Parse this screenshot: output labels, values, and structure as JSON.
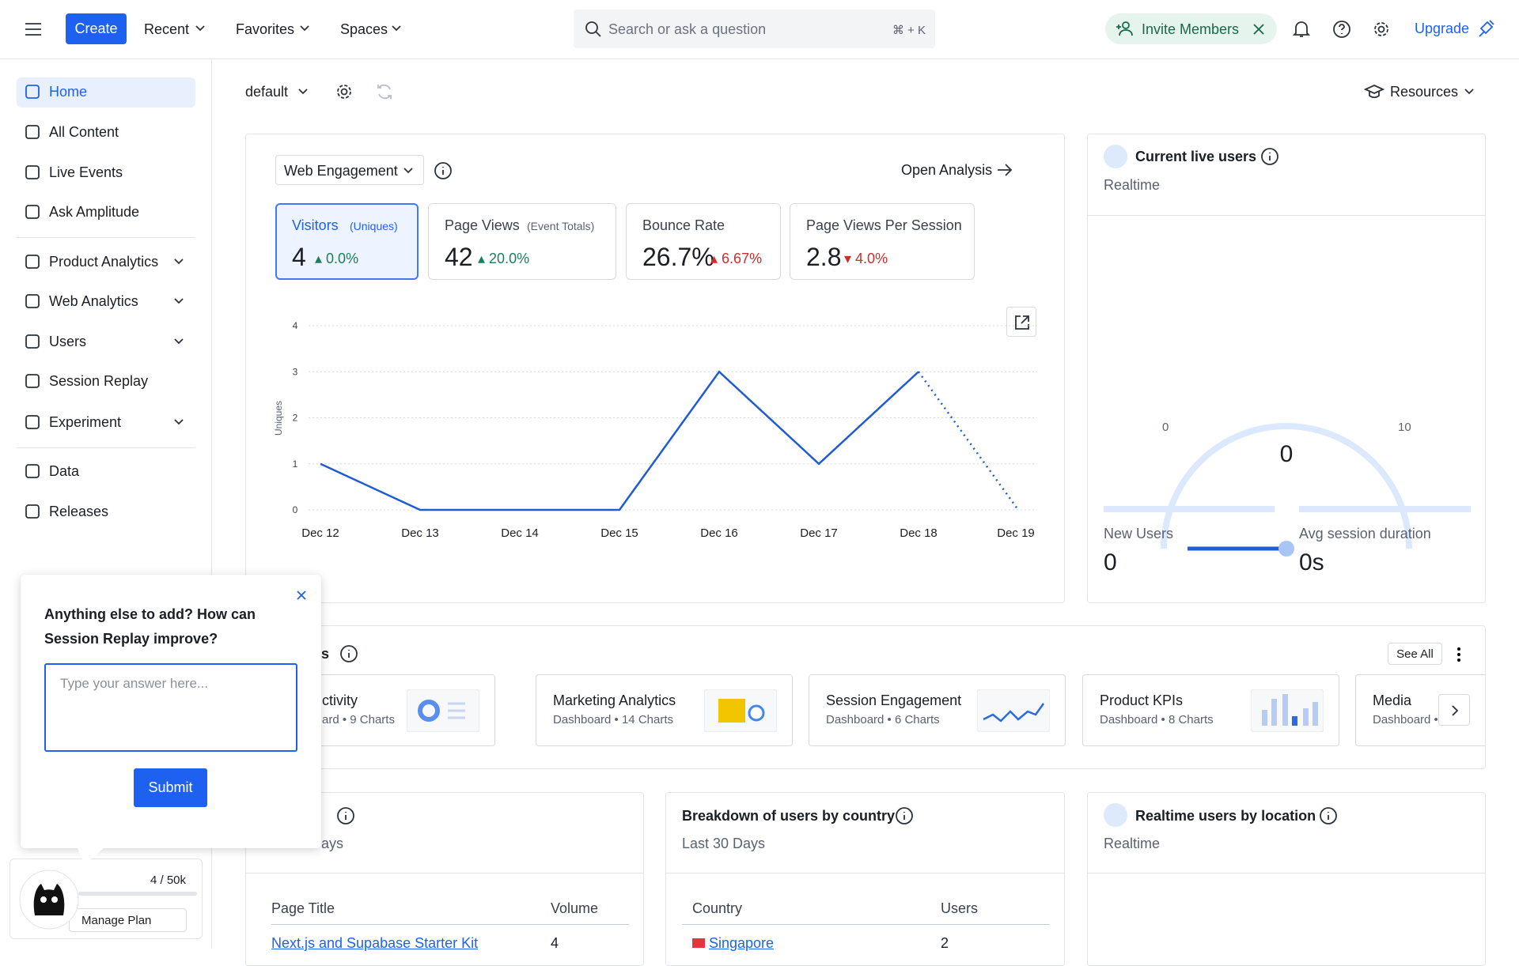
{
  "topbar": {
    "create": "Create",
    "menus": [
      "Recent",
      "Favorites",
      "Spaces"
    ],
    "search": "Search or ask a question",
    "shortcut": "⌘ + K",
    "invite": "Invite Members",
    "upgrade": "Upgrade"
  },
  "sidebar": {
    "items": [
      "Home",
      "All Content",
      "Live Events",
      "Ask Amplitude",
      "Product Analytics",
      "Web Analytics",
      "Users",
      "Session Replay",
      "Experiment",
      "Data",
      "Releases"
    ],
    "usage": "4 / 50k",
    "manage": "Manage Plan"
  },
  "toolbar": {
    "space": "default",
    "resources": "Resources"
  },
  "analysis": {
    "selector": "Web Engagement",
    "open": "Open Analysis",
    "metrics": [
      {
        "label": "Visitors",
        "sub": "(Uniques)",
        "value": "4",
        "change": "0.0%"
      },
      {
        "label": "Page Views",
        "sub": "(Event Totals)",
        "value": "42",
        "change": "20.0%"
      },
      {
        "label": "Bounce Rate",
        "value": "26.7%",
        "change": "6.67%"
      },
      {
        "label": "Page Views Per Session",
        "value": "2.8",
        "change": "4.0%"
      }
    ]
  },
  "chart_data": {
    "type": "line",
    "y_label": "Uniques",
    "categories": [
      "Dec 12",
      "Dec 13",
      "Dec 14",
      "Dec 15",
      "Dec 16",
      "Dec 17",
      "Dec 18",
      "Dec 19"
    ],
    "values": [
      1,
      0,
      0,
      0,
      3,
      1,
      3,
      0
    ],
    "color": "#1f5bd6",
    "ylim": [
      0,
      4
    ],
    "yticks": [
      0,
      1,
      2,
      3,
      4
    ],
    "grid": true
  },
  "live": {
    "title": "Current live users",
    "subtitle": "Realtime",
    "gauge_min": "0",
    "gauge_max": "10",
    "gauge_value": "0",
    "stats": [
      {
        "label": "New Users",
        "value": "0"
      },
      {
        "label": "Avg session duration",
        "value": "0s"
      }
    ]
  },
  "dashboards": {
    "title": "s",
    "see_all": "See All",
    "cards": [
      {
        "title": "ctivity",
        "sub": "ard • 9 Charts"
      },
      {
        "title": "Marketing Analytics",
        "sub": "Dashboard • 14 Charts"
      },
      {
        "title": "Session Engagement",
        "sub": "Dashboard • 6 Charts"
      },
      {
        "title": "Product KPIs",
        "sub": "Dashboard • 8 Charts"
      },
      {
        "title": "Media",
        "sub": "Dashboard •"
      }
    ]
  },
  "pages_card": {
    "title": "s",
    "subtitle": "ays",
    "columns": [
      "Page Title",
      "Volume"
    ],
    "rows": [
      [
        "Next.js and Supabase Starter Kit",
        "4"
      ]
    ]
  },
  "country_card": {
    "title": "Breakdown of users by country",
    "subtitle": "Last 30 Days",
    "columns": [
      "Country",
      "Users"
    ],
    "rows": [
      [
        "Singapore",
        "2"
      ]
    ]
  },
  "location_card": {
    "title": "Realtime users by location",
    "subtitle": "Realtime"
  },
  "popup": {
    "question": "Anything else to add? How can Session Replay improve?",
    "placeholder": "Type your answer here...",
    "submit": "Submit"
  }
}
